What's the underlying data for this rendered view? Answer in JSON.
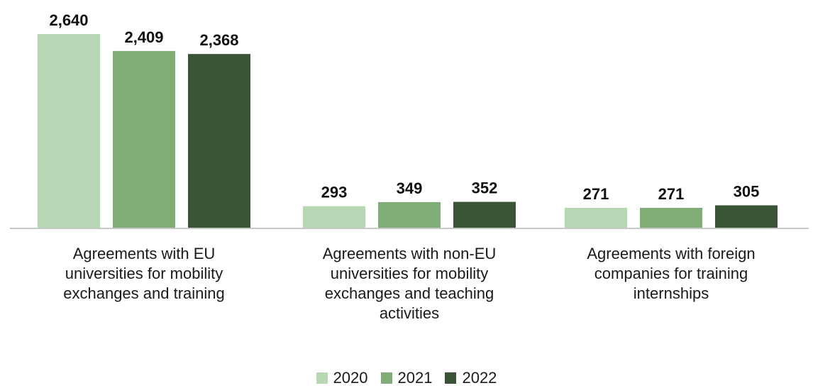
{
  "chart_data": {
    "type": "bar",
    "categories": [
      "Agreements with EU universities for mobility exchanges and training",
      "Agreements with non-EU universities for mobility exchanges and teaching activities",
      "Agreements with foreign companies for training internships"
    ],
    "series": [
      {
        "name": "2020",
        "values": [
          2640,
          293,
          271
        ],
        "labels": [
          "2,640",
          "293",
          "271"
        ],
        "color": "#b7d8b4"
      },
      {
        "name": "2021",
        "values": [
          2409,
          349,
          271
        ],
        "labels": [
          "2,409",
          "349",
          "271"
        ],
        "color": "#80ad75"
      },
      {
        "name": "2022",
        "values": [
          2368,
          352,
          305
        ],
        "labels": [
          "2,368",
          "352",
          "305"
        ],
        "color": "#3a5436"
      }
    ],
    "ylim": [
      0,
      2640
    ],
    "grid": false,
    "legend_position": "bottom"
  }
}
